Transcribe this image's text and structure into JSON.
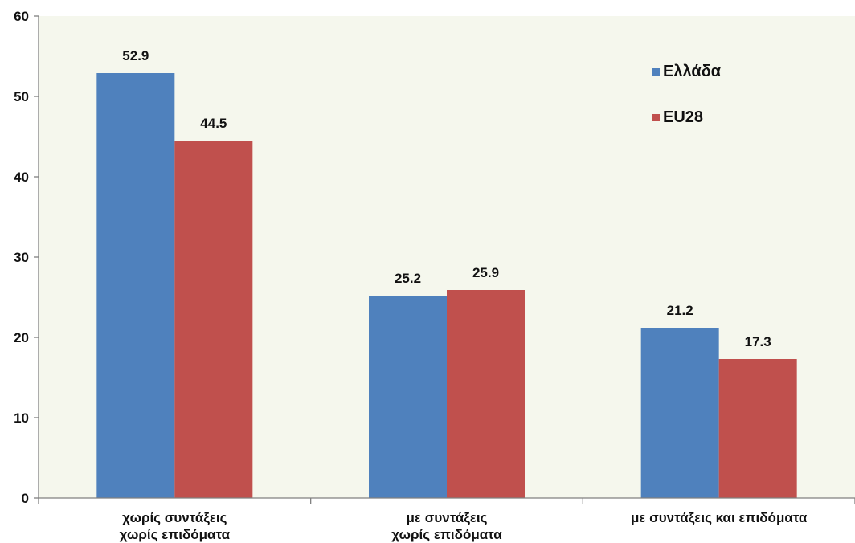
{
  "chart_data": {
    "type": "bar",
    "categories": [
      [
        "χωρίς συντάξεις",
        "χωρίς επιδόματα"
      ],
      [
        "με συντάξεις",
        "χωρίς επιδόματα"
      ],
      [
        "με συντάξεις και επιδόματα"
      ]
    ],
    "series": [
      {
        "name": "Ελλάδα",
        "color": "#4f81bd",
        "values": [
          52.9,
          25.2,
          21.2
        ]
      },
      {
        "name": "EU28",
        "color": "#c0504d",
        "values": [
          44.5,
          25.9,
          17.3
        ]
      }
    ],
    "ylim": [
      0,
      60
    ],
    "yticks": [
      0,
      10,
      20,
      30,
      40,
      50,
      60
    ],
    "grid": false,
    "legend_position": "top-right",
    "plot_background": "#f5f7ed"
  }
}
